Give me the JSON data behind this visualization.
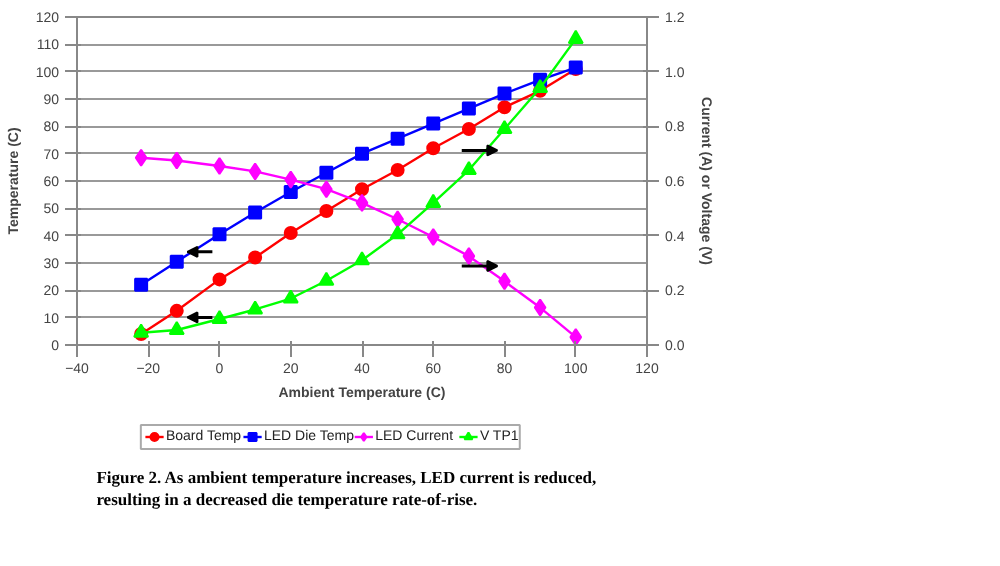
{
  "chart_data": {
    "type": "line",
    "xlabel": "Ambient Temperature (C)",
    "ylabel": "Temperature (C)",
    "y2label": "Current (A) or Voltage (V)",
    "x": [
      -22,
      -12,
      0,
      10,
      20,
      30,
      40,
      50,
      60,
      70,
      80,
      90,
      100
    ],
    "series": [
      {
        "name": "Board Temp",
        "color": "#ff0000",
        "marker": "circle",
        "values": [
          4,
          12.5,
          24,
          32,
          41,
          49,
          57,
          64,
          72,
          79,
          87,
          93,
          101
        ]
      },
      {
        "name": "LED Die Temp",
        "color": "#0000ff",
        "marker": "square",
        "values": [
          22,
          30.5,
          40.5,
          48.5,
          56,
          63,
          70,
          75.5,
          81,
          86.5,
          92,
          97,
          101.5
        ]
      },
      {
        "name": "LED Current",
        "color": "#ff00ff",
        "marker": "diamond",
        "axis": "y2",
        "values": [
          0.685,
          0.675,
          0.655,
          0.635,
          0.605,
          0.57,
          0.52,
          0.46,
          0.395,
          0.325,
          0.233,
          0.137,
          0.029
        ]
      },
      {
        "name": "V TP1",
        "color": "#00ff00",
        "marker": "triangle",
        "axis": "y2",
        "values": [
          0.045,
          0.055,
          0.095,
          0.13,
          0.17,
          0.235,
          0.31,
          0.405,
          0.52,
          0.64,
          0.79,
          0.94,
          1.12
        ]
      }
    ],
    "xlim": [
      -40,
      120
    ],
    "xticks": [
      -40,
      -20,
      0,
      20,
      40,
      60,
      80,
      100,
      120
    ],
    "ylim": [
      0,
      120
    ],
    "yticks": [
      0,
      10,
      20,
      30,
      40,
      50,
      60,
      70,
      80,
      90,
      100,
      110,
      120
    ],
    "y2lim": [
      0,
      1.2
    ],
    "y2ticks": [
      {
        "value": 0,
        "label": "0.0"
      },
      0.2,
      0.4,
      0.6,
      0.8,
      {
        "value": 1,
        "label": "1.0"
      },
      1.2
    ],
    "grid": "y",
    "legend": "bottom",
    "annotations": [
      "Figure 2. As ambient temperature increases, LED current is reduced, resulting in a decreased die temperature rate-of-rise."
    ]
  }
}
